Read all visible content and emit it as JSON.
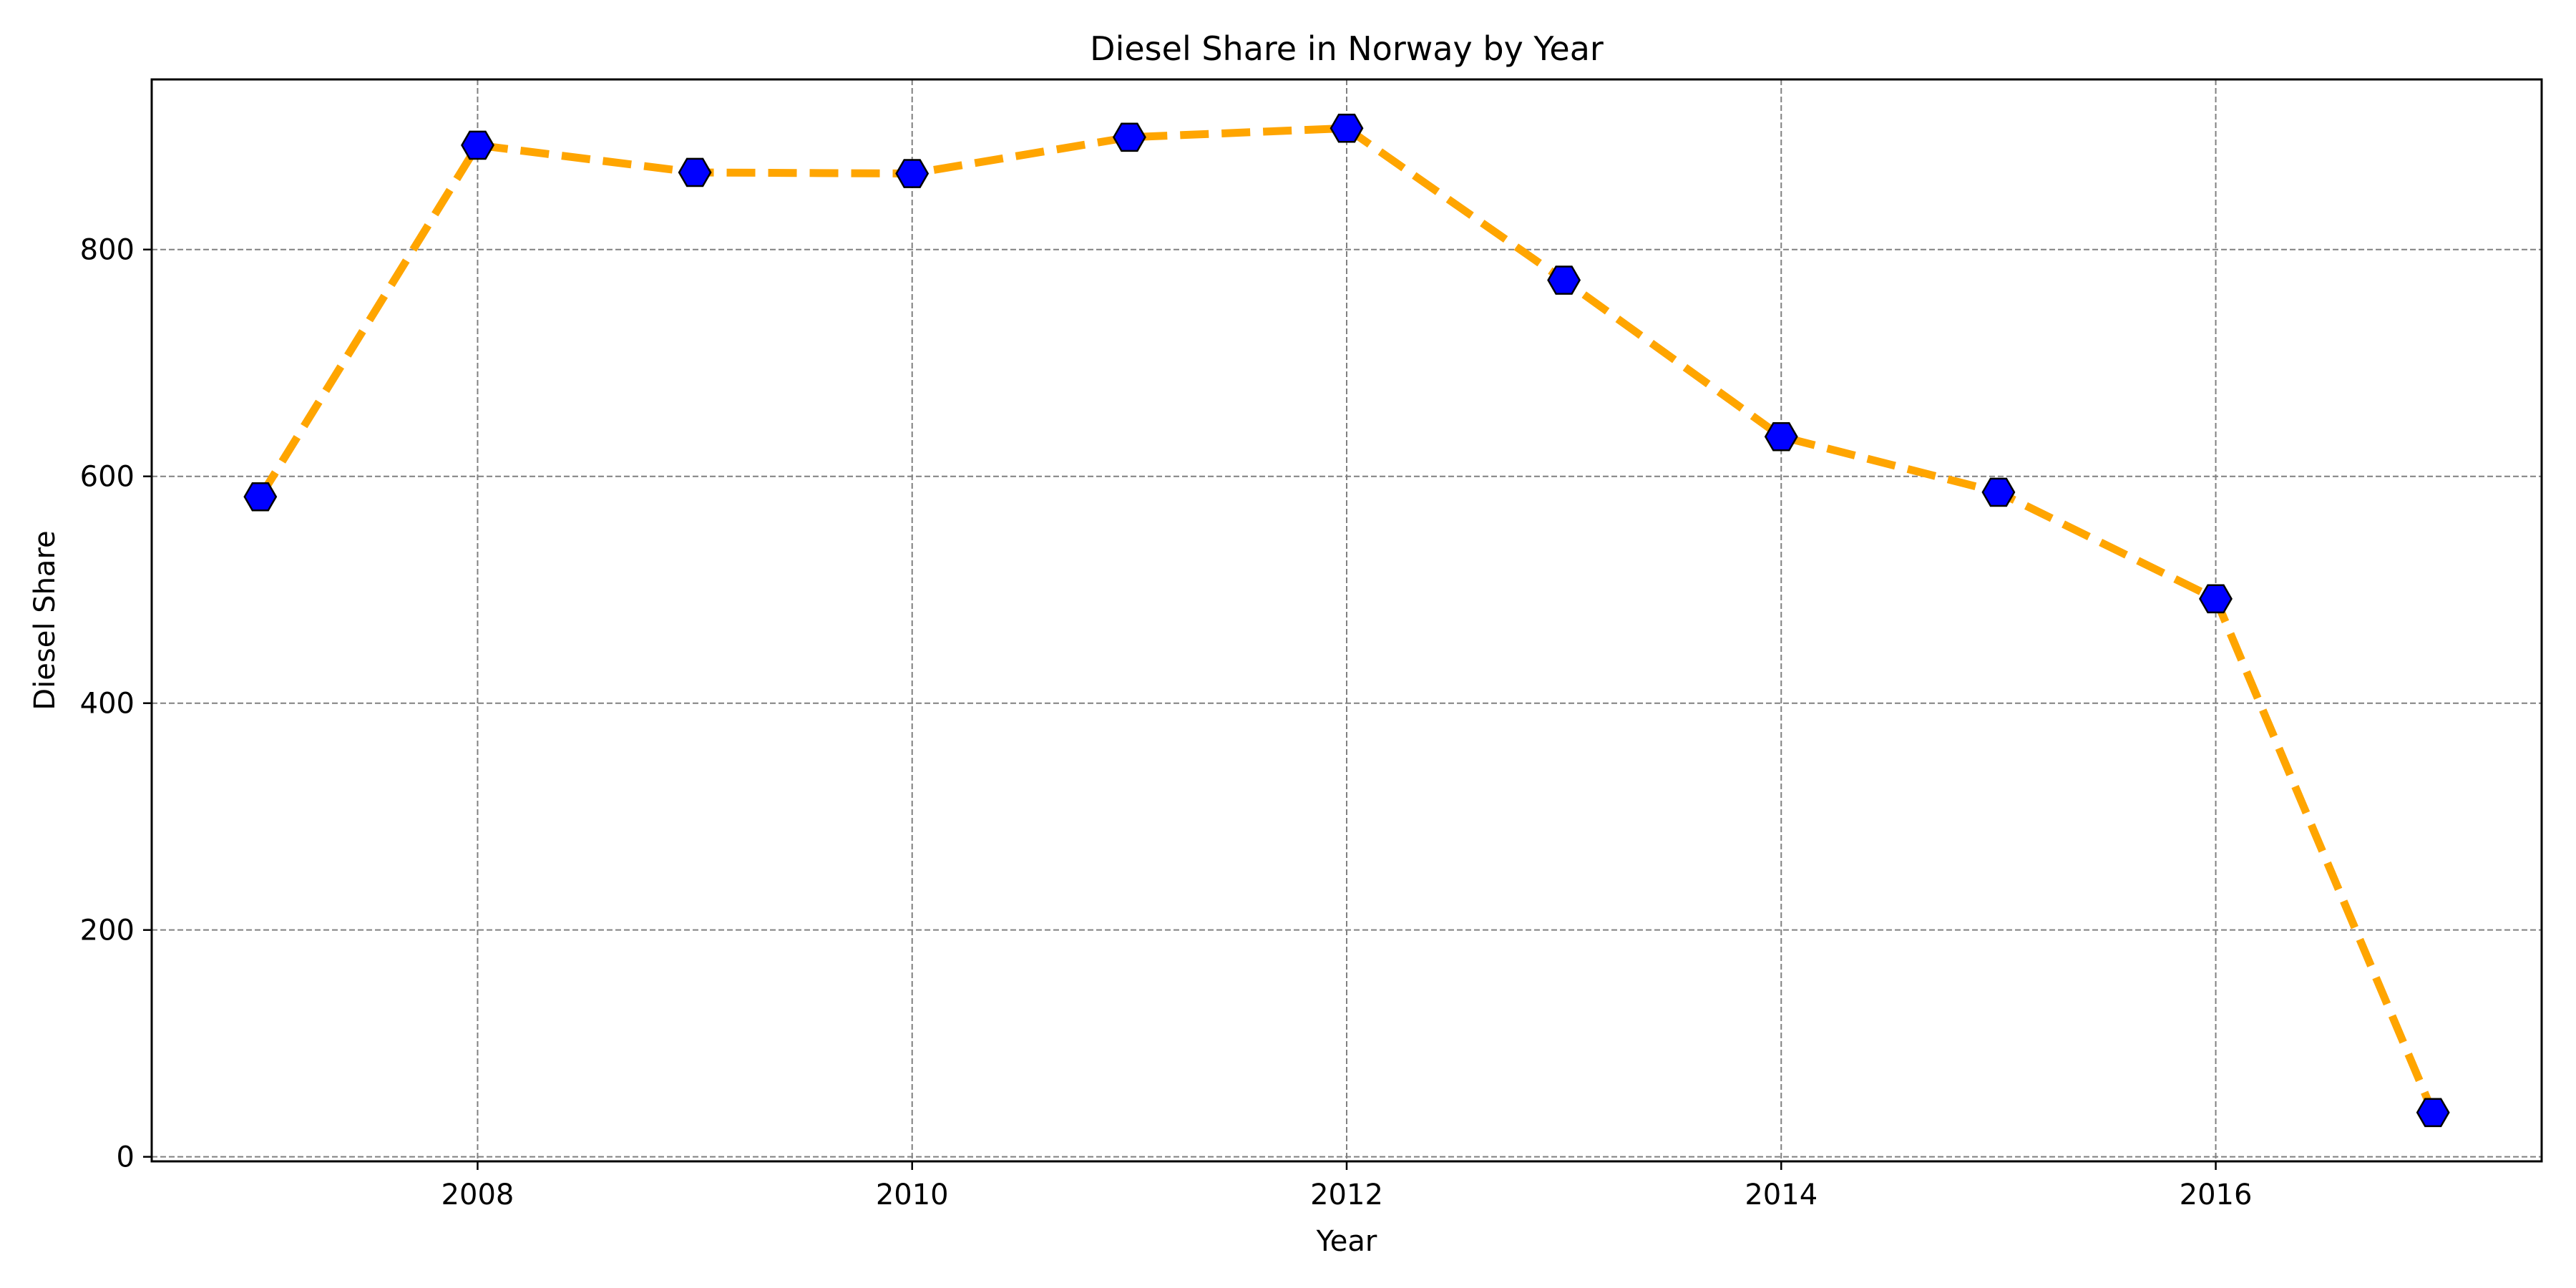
{
  "chart_data": {
    "type": "line",
    "title": "Diesel Share in Norway by Year",
    "xlabel": "Year",
    "ylabel": "Diesel Share",
    "x": [
      2007,
      2008,
      2009,
      2010,
      2011,
      2012,
      2013,
      2014,
      2015,
      2016,
      2017
    ],
    "series": [
      {
        "values": [
          582,
          892,
          868,
          867,
          899,
          907,
          773,
          635,
          586,
          492,
          39
        ]
      }
    ],
    "xlim": [
      2006.5,
      2017.5
    ],
    "ylim": [
      -4,
      950
    ],
    "xticks": [
      2008,
      2010,
      2012,
      2014,
      2016
    ],
    "yticks": [
      0,
      200,
      400,
      600,
      800
    ],
    "grid": true,
    "grid_style": "dashed",
    "legend": "none",
    "line_style": "dashed",
    "marker": "hexagon",
    "colors": {
      "line": "#ffa500",
      "marker_fill": "#0000ff",
      "marker_edge": "#000000",
      "grid": "#808080",
      "axes": "#000000"
    }
  }
}
